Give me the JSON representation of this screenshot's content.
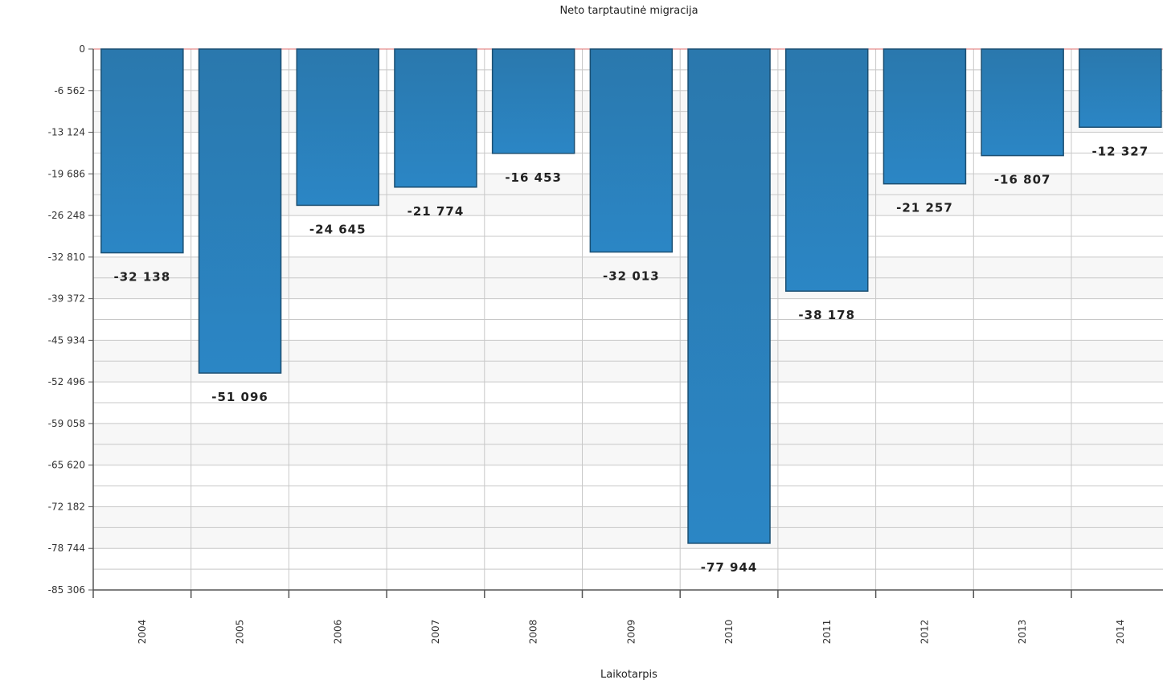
{
  "chart_data": {
    "type": "bar",
    "title": "Neto tarptautinė migracija",
    "xlabel": "Laikotarpis",
    "ylabel": "",
    "categories": [
      "2004",
      "2005",
      "2006",
      "2007",
      "2008",
      "2009",
      "2010",
      "2011",
      "2012",
      "2013",
      "2014"
    ],
    "values": [
      -32138,
      -51096,
      -24645,
      -21774,
      -16453,
      -32013,
      -77944,
      -38178,
      -21257,
      -16807,
      -12327
    ],
    "value_labels": [
      "-32 138",
      "-51 096",
      "-24 645",
      "-21 774",
      "-16 453",
      "-32 013",
      "-77 944",
      "-38 178",
      "-21 257",
      "-16 807",
      "-12 327"
    ],
    "ylim": [
      -85306,
      0
    ],
    "yticks": [
      0,
      -6562,
      -13124,
      -19686,
      -26248,
      -32810,
      -39372,
      -45934,
      -52496,
      -59058,
      -65620,
      -72182,
      -78744,
      -85306
    ],
    "ytick_labels": [
      "0",
      "-6 562",
      "-13 124",
      "-19 686",
      "-26 248",
      "-32 810",
      "-39 372",
      "-45 934",
      "-52 496",
      "-59 058",
      "-65 620",
      "-72 182",
      "-78 744",
      "-85 306"
    ],
    "grid": true,
    "colors": {
      "bar": "#2b86c5",
      "bar_edge": "#1b4f72",
      "grid": "#c8c8c8",
      "band": "#f7f7f7",
      "zero_line": "#e07070"
    }
  }
}
